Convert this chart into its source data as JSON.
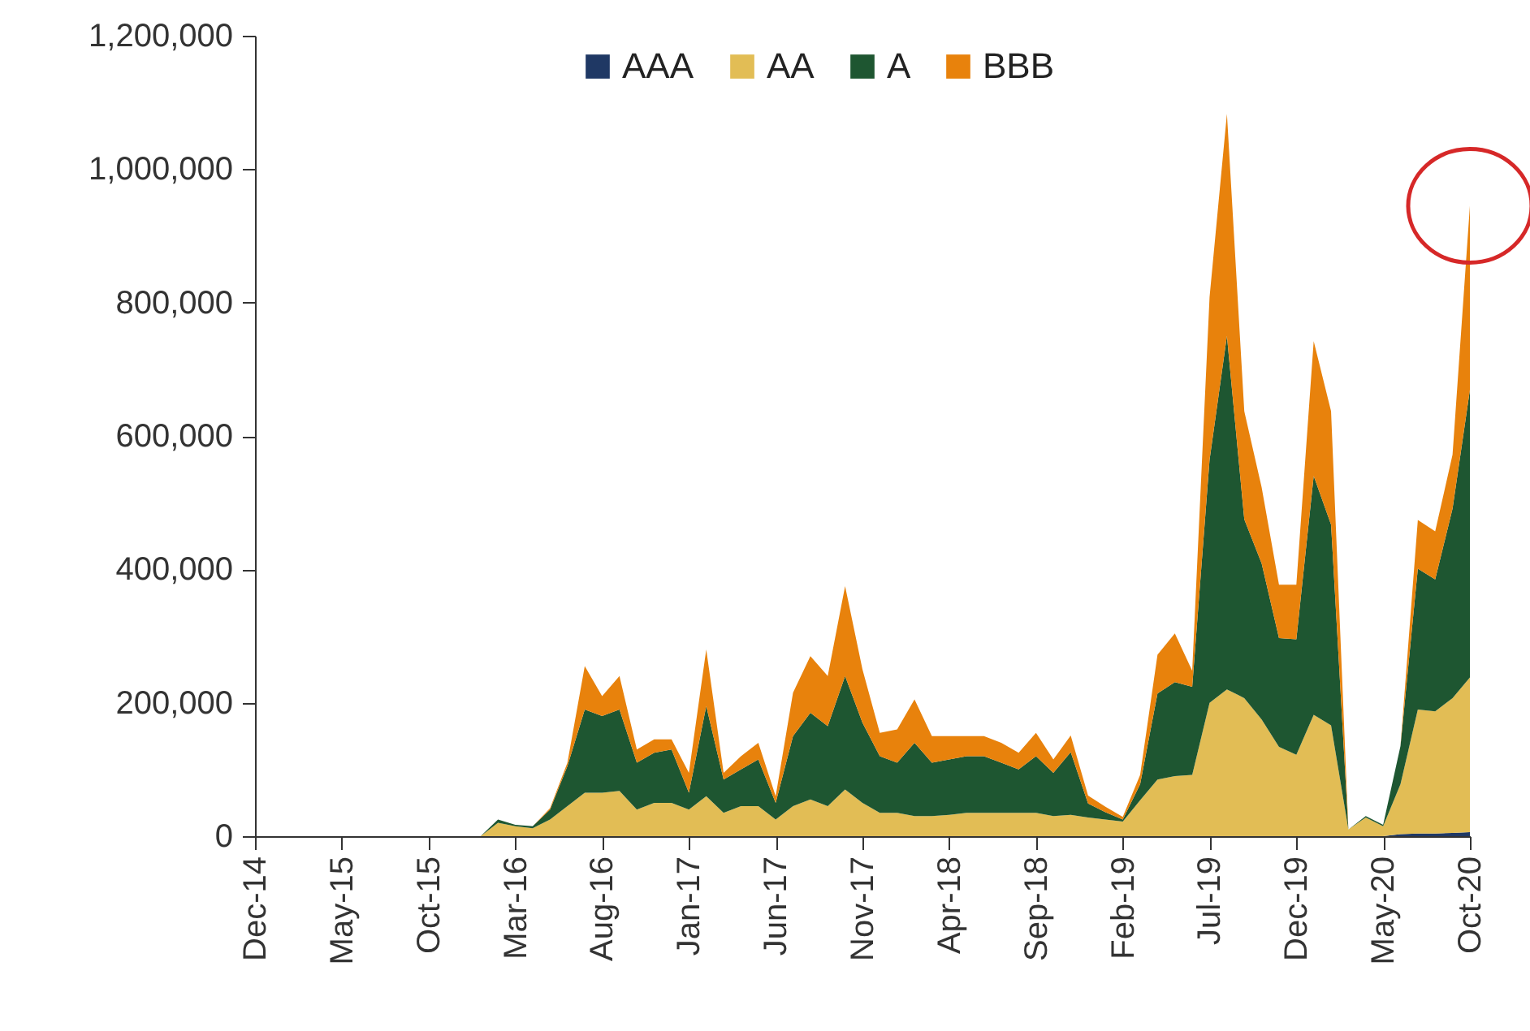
{
  "chart_data": {
    "type": "area",
    "stacked": true,
    "categories": [
      "Dec-14",
      null,
      null,
      null,
      null,
      "May-15",
      null,
      null,
      null,
      null,
      "Oct-15",
      null,
      null,
      null,
      null,
      "Mar-16",
      null,
      null,
      null,
      null,
      "Aug-16",
      null,
      null,
      null,
      null,
      "Jan-17",
      null,
      null,
      null,
      null,
      "Jun-17",
      null,
      null,
      null,
      null,
      "Nov-17",
      null,
      null,
      null,
      null,
      "Apr-18",
      null,
      null,
      null,
      null,
      "Sep-18",
      null,
      null,
      null,
      null,
      "Feb-19",
      null,
      null,
      null,
      null,
      "Jul-19",
      null,
      null,
      null,
      null,
      "Dec-19",
      null,
      null,
      null,
      null,
      "May-20",
      null,
      null,
      null,
      null,
      "Oct-20"
    ],
    "series": [
      {
        "name": "AAA",
        "color": "#1f3864",
        "values": [
          0,
          0,
          0,
          0,
          0,
          0,
          0,
          0,
          0,
          0,
          0,
          0,
          0,
          0,
          0,
          0,
          0,
          0,
          0,
          0,
          0,
          0,
          0,
          0,
          0,
          0,
          0,
          0,
          0,
          0,
          0,
          0,
          0,
          0,
          0,
          0,
          0,
          0,
          0,
          0,
          0,
          0,
          0,
          0,
          0,
          0,
          0,
          0,
          0,
          0,
          0,
          0,
          0,
          0,
          0,
          0,
          0,
          0,
          0,
          0,
          0,
          0,
          0,
          0,
          0,
          0,
          3000,
          4000,
          4000,
          5000,
          6000
        ]
      },
      {
        "name": "AA",
        "color": "#e2bd55",
        "values": [
          0,
          0,
          0,
          0,
          0,
          0,
          0,
          0,
          0,
          0,
          0,
          0,
          0,
          0,
          20000,
          15000,
          12000,
          25000,
          45000,
          65000,
          65000,
          68000,
          40000,
          50000,
          50000,
          40000,
          60000,
          35000,
          45000,
          45000,
          25000,
          45000,
          55000,
          45000,
          70000,
          50000,
          35000,
          35000,
          30000,
          30000,
          32000,
          35000,
          35000,
          35000,
          35000,
          35000,
          30000,
          32000,
          28000,
          25000,
          22000,
          54000,
          85000,
          90000,
          92000,
          200000,
          220000,
          207000,
          175000,
          134000,
          122000,
          182000,
          166000,
          10000,
          28000,
          15000,
          75000,
          186000,
          183000,
          202000,
          232000
        ]
      },
      {
        "name": "A",
        "color": "#1e5631",
        "values": [
          0,
          0,
          0,
          0,
          0,
          0,
          0,
          0,
          0,
          0,
          0,
          0,
          0,
          0,
          5000,
          2000,
          3000,
          15000,
          60000,
          125000,
          115000,
          122000,
          70000,
          75000,
          80000,
          25000,
          135000,
          50000,
          55000,
          70000,
          25000,
          105000,
          130000,
          120000,
          170000,
          120000,
          85000,
          75000,
          110000,
          80000,
          83000,
          85000,
          85000,
          75000,
          65000,
          85000,
          65000,
          94000,
          21000,
          11000,
          3000,
          24000,
          129000,
          141000,
          132000,
          364000,
          530000,
          268000,
          234000,
          163000,
          173000,
          358000,
          301000,
          0,
          2000,
          2000,
          57000,
          211000,
          198000,
          284000,
          431000
        ]
      },
      {
        "name": "BBB",
        "color": "#e8820c",
        "values": [
          0,
          0,
          0,
          0,
          0,
          0,
          0,
          0,
          0,
          0,
          0,
          0,
          0,
          0,
          0,
          0,
          0,
          2000,
          5000,
          65000,
          30000,
          50000,
          20000,
          20000,
          15000,
          30000,
          85000,
          10000,
          20000,
          25000,
          10000,
          65000,
          85000,
          75000,
          135000,
          80000,
          35000,
          50000,
          65000,
          40000,
          35000,
          30000,
          30000,
          30000,
          25000,
          35000,
          20000,
          25000,
          12000,
          8000,
          4000,
          14000,
          58000,
          73000,
          24000,
          244000,
          333000,
          162000,
          114000,
          80000,
          82000,
          202000,
          170000,
          0,
          0,
          0,
          0,
          73000,
          72000,
          81000,
          276000
        ]
      }
    ],
    "ylim": [
      0,
      1200000
    ],
    "yticks": [
      0,
      {
        "value": 200000,
        "label": "200,000"
      },
      {
        "value": 400000,
        "label": "400,000"
      },
      {
        "value": 600000,
        "label": "600,000"
      },
      {
        "value": 800000,
        "label": "800,000"
      },
      {
        "value": 1000000,
        "label": "1,000,000"
      },
      {
        "value": 1200000,
        "label": "1,200,000"
      }
    ],
    "grid": false,
    "legend": "top"
  }
}
